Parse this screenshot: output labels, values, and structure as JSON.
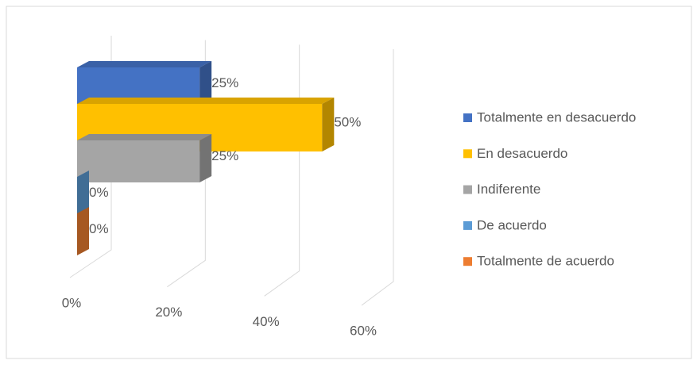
{
  "chart_data": {
    "type": "bar",
    "orientation": "horizontal",
    "three_d": true,
    "categories": [
      null
    ],
    "series": [
      {
        "name": "Totalmente en desacuerdo",
        "color": "#4472c4",
        "values": [
          25
        ],
        "value_labels": [
          "25%"
        ]
      },
      {
        "name": "En desacuerdo",
        "color": "#ffc000",
        "values": [
          50
        ],
        "value_labels": [
          "50%"
        ]
      },
      {
        "name": "Indiferente",
        "color": "#a5a5a5",
        "values": [
          25
        ],
        "value_labels": [
          "25%"
        ]
      },
      {
        "name": "De acuerdo",
        "color": "#5b9bd5",
        "values": [
          0
        ],
        "value_labels": [
          "0%"
        ]
      },
      {
        "name": "Totalmente de acuerdo",
        "color": "#ed7d31",
        "values": [
          0
        ],
        "value_labels": [
          "0%"
        ]
      }
    ],
    "xlim": [
      0,
      60
    ],
    "xticks": [
      {
        "value": 0,
        "label": "0%"
      },
      {
        "value": 20,
        "label": "20%"
      },
      {
        "value": 40,
        "label": "40%"
      },
      {
        "value": 60,
        "label": "60%"
      }
    ],
    "grid": true,
    "legend": "right"
  }
}
